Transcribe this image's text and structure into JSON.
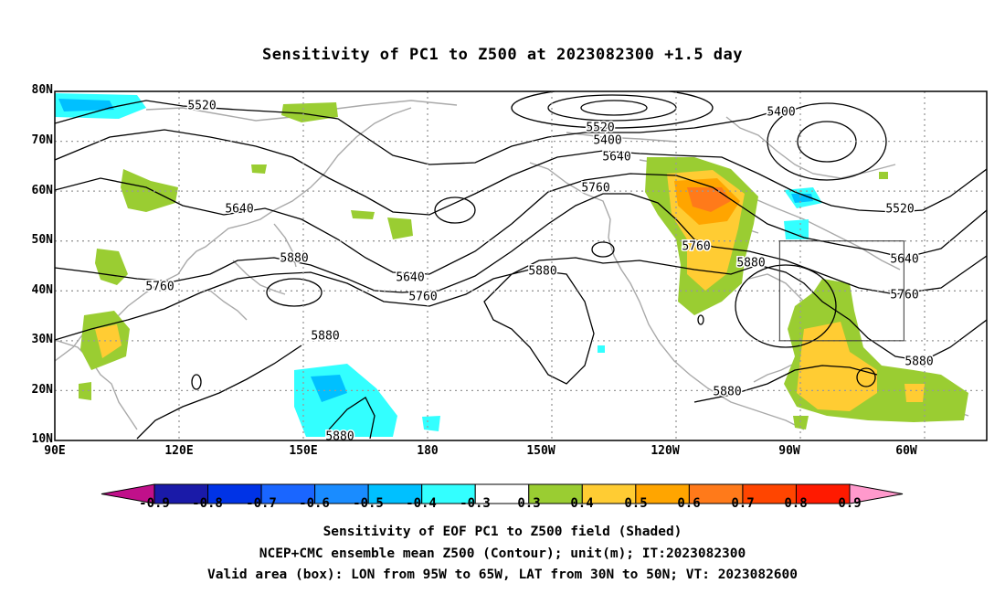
{
  "title": "Sensitivity of PC1 to Z500 at 2023082300 +1.5 day",
  "lat_ticks": [
    "80N",
    "70N",
    "60N",
    "50N",
    "40N",
    "30N",
    "20N",
    "10N"
  ],
  "lon_ticks": [
    "90E",
    "120E",
    "150E",
    "180",
    "150W",
    "120W",
    "90W",
    "60W"
  ],
  "contour_labels": [
    {
      "text": "5520"
    },
    {
      "text": "5400"
    },
    {
      "text": "5520"
    },
    {
      "text": "5400"
    },
    {
      "text": "5640"
    },
    {
      "text": "5760"
    },
    {
      "text": "5640"
    },
    {
      "text": "5520"
    },
    {
      "text": "5880"
    },
    {
      "text": "5760"
    },
    {
      "text": "5640"
    },
    {
      "text": "5760"
    },
    {
      "text": "5880"
    },
    {
      "text": "5760"
    },
    {
      "text": "5880"
    },
    {
      "text": "5640"
    },
    {
      "text": "5760"
    },
    {
      "text": "5880"
    },
    {
      "text": "5880"
    },
    {
      "text": "5880"
    },
    {
      "text": "5880"
    }
  ],
  "colorbar": {
    "labels": [
      "-0.9",
      "-0.8",
      "-0.7",
      "-0.6",
      "-0.5",
      "-0.4",
      "-0.3",
      "0.3",
      "0.4",
      "0.5",
      "0.6",
      "0.7",
      "0.8",
      "0.9"
    ],
    "colors": [
      "#1a1aa8",
      "#0033e6",
      "#1a66ff",
      "#1a8cff",
      "#00c0ff",
      "#33ffff",
      "#ffffff",
      "#9acd32",
      "#ffcc33",
      "#ffa500",
      "#ff7a1a",
      "#ff4500",
      "#ff1a00"
    ],
    "low_extend_color": "#c0108a",
    "high_extend_color": "#ff99cc"
  },
  "valid_box": {
    "lon_west": -95,
    "lon_east": -65,
    "lat_south": 30,
    "lat_north": 50
  },
  "captions": [
    "Sensitivity of EOF PC1 to Z500 field (Shaded)",
    "NCEP+CMC ensemble mean Z500 (Contour); unit(m); IT:2023082300",
    "Valid area (box): LON from 95W to 65W, LAT from 30N to 50N; VT: 2023082600"
  ]
}
